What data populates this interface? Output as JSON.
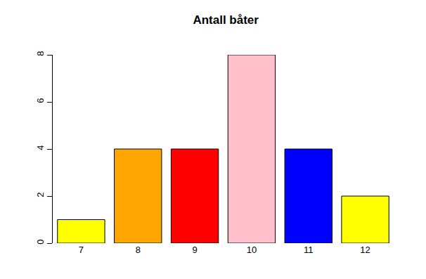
{
  "chart_data": {
    "type": "bar",
    "title": "Antall båter",
    "categories": [
      "7",
      "8",
      "9",
      "10",
      "11",
      "12"
    ],
    "values": [
      1,
      4,
      4,
      8,
      4,
      2
    ],
    "colors": [
      "#ffff00",
      "#ffa500",
      "#ff0000",
      "#ffc0cb",
      "#0000ff",
      "#ffff00"
    ],
    "ylim": [
      0,
      8
    ],
    "yticks": [
      0,
      2,
      4,
      6,
      8
    ],
    "grid": false
  }
}
